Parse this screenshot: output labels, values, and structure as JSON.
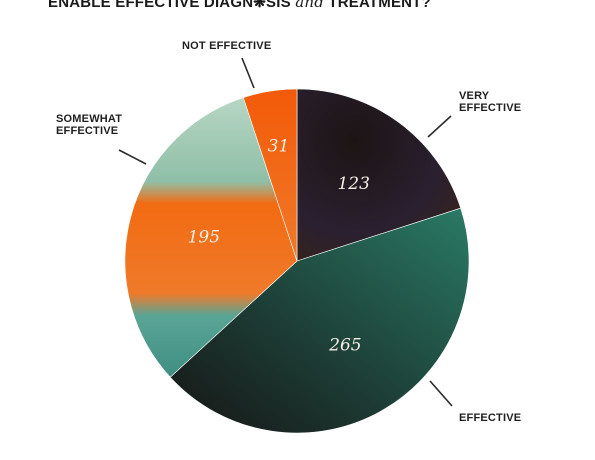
{
  "header": {
    "title_pre": "ENABLE EFFECTIVE DIAGN",
    "title_glyph": "❋",
    "title_mid": "SIS ",
    "title_connector": "and",
    "title_post": " TREATMENT?"
  },
  "chart_data": {
    "type": "pie",
    "title": "",
    "legend": "none",
    "slices": [
      {
        "label_lines": [
          "VERY",
          "EFFECTIVE"
        ],
        "value": 123,
        "value_label": "123",
        "color": "#2a1c1c"
      },
      {
        "label_lines": [
          "EFFECTIVE"
        ],
        "value": 265,
        "value_label": "265",
        "color": "#1f5a4c"
      },
      {
        "label_lines": [
          "SOMEWHAT",
          "EFFECTIVE"
        ],
        "value": 195,
        "value_label": "195",
        "color": "#f26b12"
      },
      {
        "label_lines": [
          "NOT EFFECTIVE"
        ],
        "value": 31,
        "value_label": "31",
        "color": "#f0520a"
      }
    ],
    "somewhat_band_colors": [
      "#a9cdb9",
      "#f26b12",
      "#4e9b8e"
    ]
  }
}
